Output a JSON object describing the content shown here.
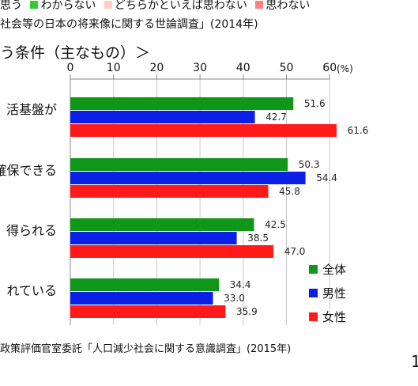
{
  "header": {
    "legend_top": [
      {
        "label": "思う",
        "color": null
      },
      {
        "label": "わからない",
        "color": "#33cc33"
      },
      {
        "label": "どちらかといえば思わない",
        "color": "#ffcccc"
      },
      {
        "label": "思わない",
        "color": "#ff8080"
      }
    ],
    "source_top": "社会等の日本の将来像に関する世論調査」(2014年)"
  },
  "chart_title": "う条件（主なもの）＞",
  "unit": "(%)",
  "source_bottom": "政策評価官室委託「人口減少社会に関する意識調査」(2015年)",
  "page_number": "1",
  "chart_data": {
    "type": "bar",
    "orientation": "horizontal",
    "categories": [
      "活基盤が",
      "確保できる",
      "得られる",
      "れている"
    ],
    "series": [
      {
        "name": "全体",
        "color": "#109618",
        "values": [
          51.6,
          50.3,
          42.5,
          34.4
        ]
      },
      {
        "name": "男性",
        "color": "#0a20e6",
        "values": [
          42.7,
          54.4,
          38.5,
          33.0
        ]
      },
      {
        "name": "女性",
        "color": "#ff1a1a",
        "values": [
          61.6,
          45.8,
          47.0,
          35.9
        ]
      }
    ],
    "xlim": [
      0,
      60
    ],
    "ticks": [
      0,
      10,
      20,
      30,
      40,
      50,
      60
    ],
    "tick_labels": [
      "0",
      "10",
      "20",
      "30",
      "40",
      "50",
      "60"
    ],
    "data_labels": [
      [
        "51.6",
        "50.3",
        "42.5",
        "34.4"
      ],
      [
        "42.7",
        "54.4",
        "38.5",
        "33.0"
      ],
      [
        "61.6",
        "45.8",
        "47.0",
        "35.9"
      ]
    ],
    "grid": true,
    "legend_position": "bottom-right"
  }
}
